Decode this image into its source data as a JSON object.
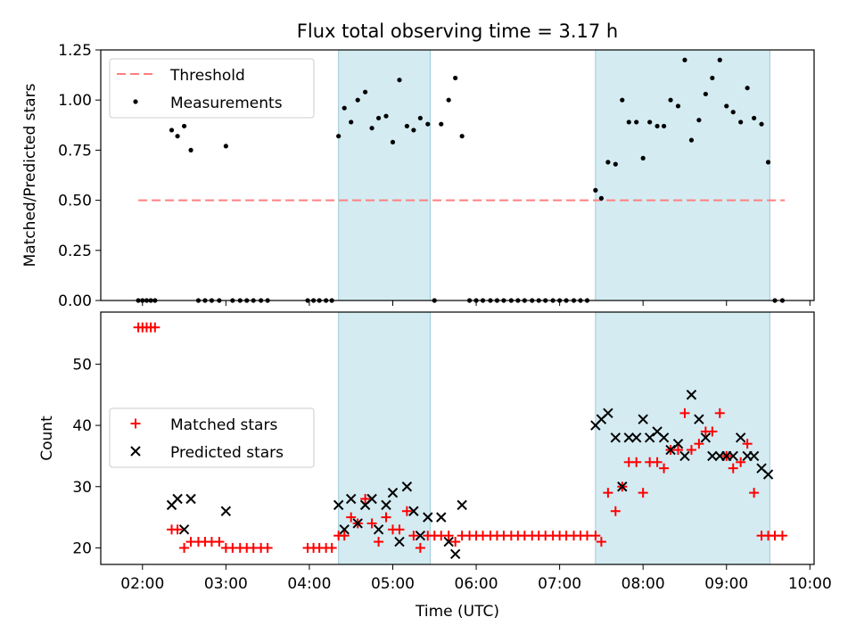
{
  "title": "Flux total observing time = 3.17 h",
  "chart_data": [
    {
      "type": "scatter",
      "ylabel": "Matched/Predicted stars",
      "ylim": [
        0,
        1.25
      ],
      "yticks": [
        "0.00",
        "0.25",
        "0.50",
        "0.75",
        "1.00",
        "1.25"
      ],
      "xlim_hours": [
        1.5,
        10.05
      ],
      "legend_position": "upper-left",
      "threshold": {
        "name": "Threshold",
        "value": 0.5,
        "x_start": 1.95,
        "x_end": 9.7,
        "color": "#ff7f7f",
        "style": "dashed"
      },
      "shaded_intervals": [
        [
          4.35,
          5.45
        ],
        [
          7.43,
          9.52
        ]
      ],
      "series": [
        {
          "name": "Measurements",
          "color": "#000000",
          "x": [
            1.95,
            2.0,
            2.05,
            2.1,
            2.15,
            2.35,
            2.42,
            2.5,
            2.58,
            2.67,
            2.75,
            2.83,
            2.92,
            3.0,
            3.08,
            3.17,
            3.25,
            3.33,
            3.42,
            3.5,
            3.98,
            4.05,
            4.12,
            4.2,
            4.27,
            4.35,
            4.42,
            4.5,
            4.58,
            4.67,
            4.75,
            4.83,
            4.92,
            5.0,
            5.08,
            5.17,
            5.25,
            5.33,
            5.42,
            5.5,
            5.58,
            5.67,
            5.75,
            5.83,
            5.92,
            6.0,
            6.08,
            6.17,
            6.25,
            6.33,
            6.42,
            6.5,
            6.58,
            6.67,
            6.75,
            6.83,
            6.92,
            7.0,
            7.08,
            7.17,
            7.25,
            7.33,
            7.43,
            7.5,
            7.58,
            7.67,
            7.75,
            7.83,
            7.92,
            8.0,
            8.08,
            8.17,
            8.25,
            8.33,
            8.42,
            8.5,
            8.58,
            8.67,
            8.75,
            8.83,
            8.92,
            9.0,
            9.08,
            9.17,
            9.25,
            9.33,
            9.42,
            9.5,
            9.58,
            9.67
          ],
          "y": [
            0,
            0,
            0,
            0,
            0,
            0.85,
            0.82,
            0.87,
            0.75,
            0,
            0,
            0,
            0,
            0.77,
            0,
            0,
            0,
            0,
            0,
            0,
            0,
            0,
            0,
            0,
            0,
            0.82,
            0.96,
            0.89,
            1.0,
            1.04,
            0.86,
            0.91,
            0.92,
            0.79,
            1.1,
            0.87,
            0.85,
            0.91,
            0.88,
            0,
            0.88,
            1.0,
            1.11,
            0.82,
            0,
            0,
            0,
            0,
            0,
            0,
            0,
            0,
            0,
            0,
            0,
            0,
            0,
            0,
            0,
            0,
            0,
            0,
            0.55,
            0.51,
            0.69,
            0.68,
            1.0,
            0.89,
            0.89,
            0.71,
            0.89,
            0.87,
            0.87,
            1.0,
            0.97,
            1.2,
            0.8,
            0.9,
            1.03,
            1.11,
            1.2,
            0.97,
            0.94,
            0.89,
            1.06,
            0.91,
            0.88,
            0.69,
            0,
            0
          ]
        }
      ]
    },
    {
      "type": "scatter",
      "xlabel": "Time (UTC)",
      "ylabel": "Count",
      "ylim": [
        17.3,
        58.5
      ],
      "yticks": [
        "20",
        "30",
        "40",
        "50"
      ],
      "xlim_hours": [
        1.5,
        10.05
      ],
      "xticks": [
        "02:00",
        "03:00",
        "04:00",
        "05:00",
        "06:00",
        "07:00",
        "08:00",
        "09:00",
        "10:00"
      ],
      "legend_position": "center-left",
      "shaded_intervals": [
        [
          4.35,
          5.45
        ],
        [
          7.43,
          9.52
        ]
      ],
      "series": [
        {
          "name": "Matched stars",
          "marker": "plus",
          "color": "#ff0000",
          "x": [
            1.95,
            2.0,
            2.05,
            2.1,
            2.15,
            2.35,
            2.42,
            2.5,
            2.58,
            2.67,
            2.75,
            2.83,
            2.92,
            3.0,
            3.08,
            3.17,
            3.25,
            3.33,
            3.42,
            3.5,
            3.98,
            4.05,
            4.12,
            4.2,
            4.27,
            4.35,
            4.42,
            4.5,
            4.58,
            4.67,
            4.75,
            4.83,
            4.92,
            5.0,
            5.08,
            5.17,
            5.25,
            5.33,
            5.42,
            5.5,
            5.58,
            5.67,
            5.75,
            5.83,
            5.92,
            6.0,
            6.08,
            6.17,
            6.25,
            6.33,
            6.42,
            6.5,
            6.58,
            6.67,
            6.75,
            6.83,
            6.92,
            7.0,
            7.08,
            7.17,
            7.25,
            7.33,
            7.43,
            7.5,
            7.58,
            7.67,
            7.75,
            7.83,
            7.92,
            8.0,
            8.08,
            8.17,
            8.25,
            8.33,
            8.42,
            8.5,
            8.58,
            8.67,
            8.75,
            8.83,
            8.92,
            9.0,
            9.08,
            9.17,
            9.25,
            9.33,
            9.42,
            9.5,
            9.58,
            9.67
          ],
          "y": [
            56,
            56,
            56,
            56,
            56,
            23,
            23,
            20,
            21,
            21,
            21,
            21,
            21,
            20,
            20,
            20,
            20,
            20,
            20,
            20,
            20,
            20,
            20,
            20,
            20,
            22,
            22,
            25,
            24,
            28,
            24,
            21,
            25,
            23,
            23,
            26,
            22,
            20,
            22,
            22,
            22,
            22,
            21,
            22,
            22,
            22,
            22,
            22,
            22,
            22,
            22,
            22,
            22,
            22,
            22,
            22,
            22,
            22,
            22,
            22,
            22,
            22,
            22,
            21,
            29,
            26,
            30,
            34,
            34,
            29,
            34,
            34,
            33,
            36,
            36,
            42,
            36,
            37,
            39,
            39,
            42,
            35,
            33,
            34,
            37,
            29,
            22,
            22,
            22,
            22
          ]
        },
        {
          "name": "Predicted stars",
          "marker": "x",
          "color": "#000000",
          "x": [
            2.35,
            2.42,
            2.5,
            2.58,
            3.0,
            4.35,
            4.42,
            4.5,
            4.58,
            4.67,
            4.75,
            4.83,
            4.92,
            5.0,
            5.08,
            5.17,
            5.25,
            5.33,
            5.42,
            5.58,
            5.67,
            5.75,
            5.83,
            7.43,
            7.5,
            7.58,
            7.67,
            7.75,
            7.83,
            7.92,
            8.0,
            8.08,
            8.17,
            8.25,
            8.33,
            8.42,
            8.5,
            8.58,
            8.67,
            8.75,
            8.83,
            8.92,
            9.0,
            9.08,
            9.17,
            9.25,
            9.33,
            9.42,
            9.5
          ],
          "y": [
            27,
            28,
            23,
            28,
            26,
            27,
            23,
            28,
            24,
            27,
            28,
            23,
            27,
            29,
            21,
            30,
            26,
            22,
            25,
            25,
            21,
            19,
            27,
            40,
            41,
            42,
            38,
            30,
            38,
            38,
            41,
            38,
            39,
            38,
            36,
            37,
            35,
            45,
            41,
            38,
            35,
            35,
            35,
            35,
            38,
            35,
            35,
            33,
            32
          ]
        }
      ]
    }
  ]
}
